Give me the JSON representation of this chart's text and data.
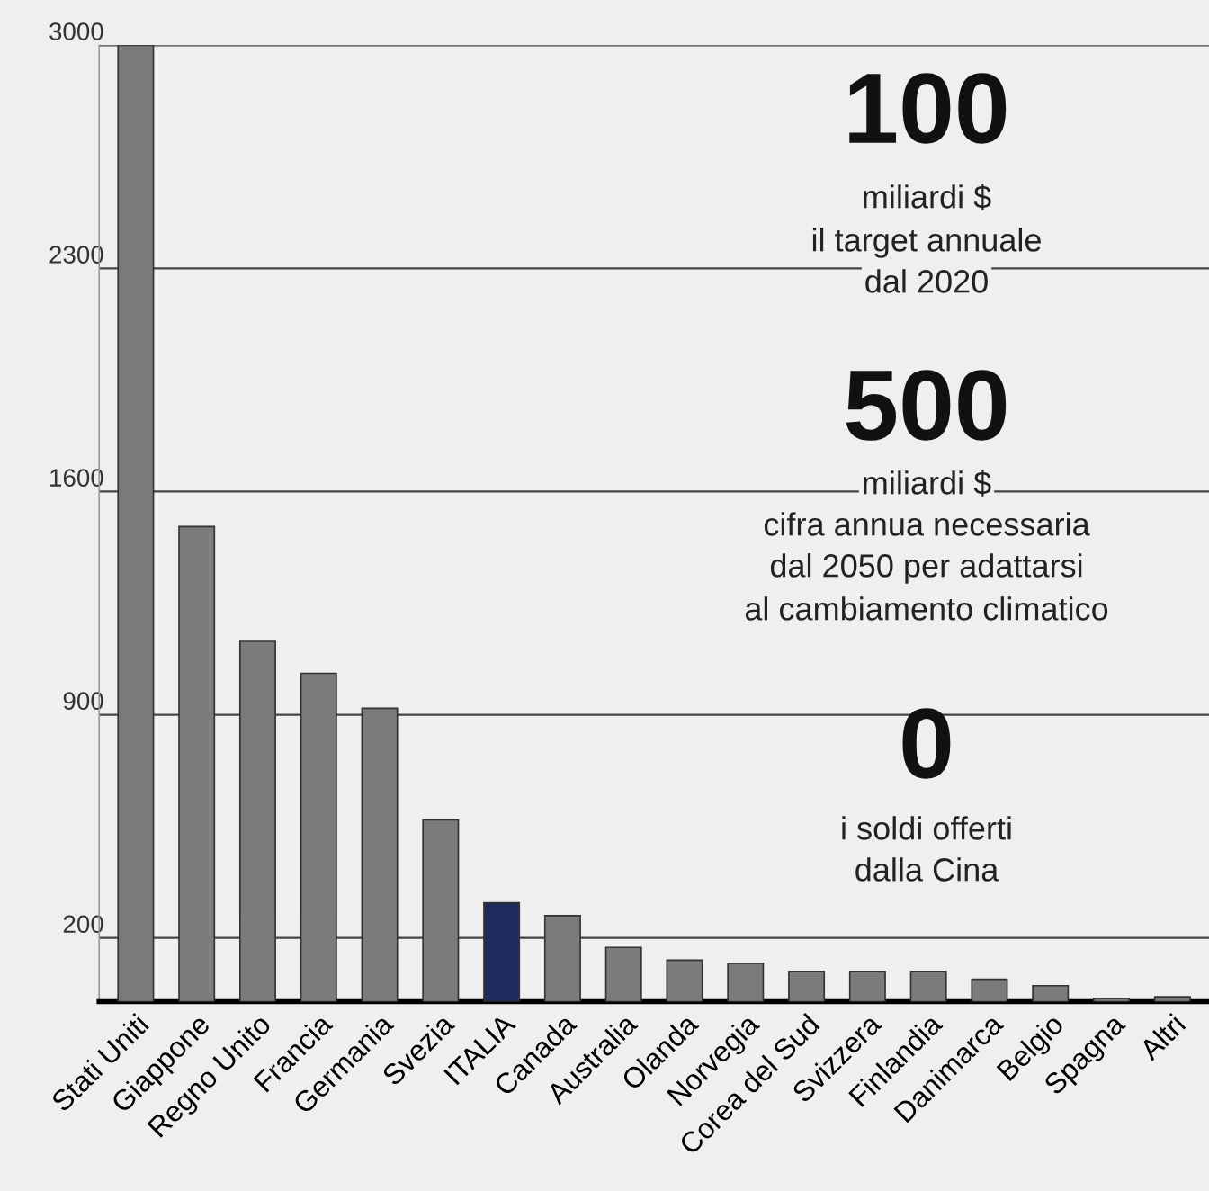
{
  "chart_data": {
    "type": "bar",
    "categories": [
      "Stati Uniti",
      "Giappone",
      "Regno Unito",
      "Francia",
      "Germania",
      "Svezia",
      "ITALIA",
      "Canada",
      "Australia",
      "Olanda",
      "Norvegia",
      "Corea del Sud",
      "Svizzera",
      "Finlandia",
      "Danimarca",
      "Belgio",
      "Spagna",
      "Altri"
    ],
    "values": [
      3000,
      1490,
      1130,
      1030,
      920,
      570,
      310,
      270,
      170,
      130,
      120,
      95,
      95,
      95,
      70,
      50,
      10,
      15
    ],
    "colors": [
      "#7b7b7b",
      "#7b7b7b",
      "#7b7b7b",
      "#7b7b7b",
      "#7b7b7b",
      "#7b7b7b",
      "#1f2a5c",
      "#7b7b7b",
      "#7b7b7b",
      "#7b7b7b",
      "#7b7b7b",
      "#7b7b7b",
      "#7b7b7b",
      "#7b7b7b",
      "#7b7b7b",
      "#7b7b7b",
      "#7b7b7b",
      "#7b7b7b"
    ],
    "ylim": [
      0,
      3000
    ],
    "yticks": [
      200,
      900,
      1600,
      2300,
      3000
    ],
    "grid": "y",
    "annotations": [
      "100",
      "miliardi $",
      "il target annuale",
      "dal 2020",
      "500",
      "miliardi $",
      "cifra annua necessaria",
      "dal 2050 per adattarsi",
      "al cambiamento climatico",
      "0",
      "i soldi offerti",
      "dalla Cina"
    ]
  }
}
